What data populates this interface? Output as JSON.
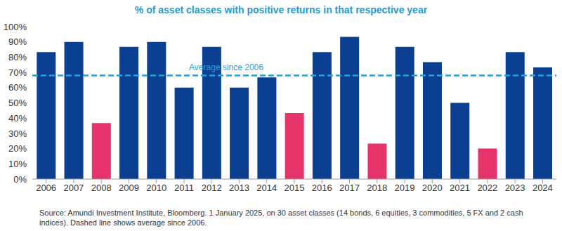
{
  "chart_data": {
    "type": "bar",
    "title": "% of asset classes with positive returns in that respective year",
    "categories": [
      "2006",
      "2007",
      "2008",
      "2009",
      "2010",
      "2011",
      "2012",
      "2013",
      "2014",
      "2015",
      "2016",
      "2017",
      "2018",
      "2019",
      "2020",
      "2021",
      "2022",
      "2023",
      "2024"
    ],
    "values": [
      83.3,
      90,
      36.7,
      86.7,
      90,
      60,
      86.7,
      60,
      66.7,
      43.3,
      83.3,
      93.3,
      23.3,
      86.7,
      76.7,
      50,
      20,
      83.3,
      73.3
    ],
    "colors": [
      "#0b3f91",
      "#0b3f91",
      "#e6336a",
      "#0b3f91",
      "#0b3f91",
      "#0b3f91",
      "#0b3f91",
      "#0b3f91",
      "#0b3f91",
      "#e6336a",
      "#0b3f91",
      "#0b3f91",
      "#e6336a",
      "#0b3f91",
      "#0b3f91",
      "#0b3f91",
      "#e6336a",
      "#0b3f91",
      "#0b3f91"
    ],
    "ylim": [
      0,
      100
    ],
    "yticks": [
      {
        "value": 0,
        "label": "0%"
      },
      {
        "value": 10,
        "label": "10%"
      },
      {
        "value": 20,
        "label": "20%"
      },
      {
        "value": 30,
        "label": "30%"
      },
      {
        "value": 40,
        "label": "40%"
      },
      {
        "value": 50,
        "label": "50%"
      },
      {
        "value": 60,
        "label": "60%"
      },
      {
        "value": 70,
        "label": "70%"
      },
      {
        "value": 80,
        "label": "80%"
      },
      {
        "value": 90,
        "label": "90%"
      },
      {
        "value": 100,
        "label": "100%"
      }
    ],
    "grid": false,
    "reference_line": {
      "value": 68,
      "label": "Average since 2006",
      "color": "#2b9fd9"
    },
    "footnote": "Source: Amundi Investment Institute, Bloomberg. 1 January 2025, on 30 asset classes (14 bonds, 6 equities, 3 commodities, 5 FX and 2 cash indices). Dashed line shows average since 2006."
  }
}
